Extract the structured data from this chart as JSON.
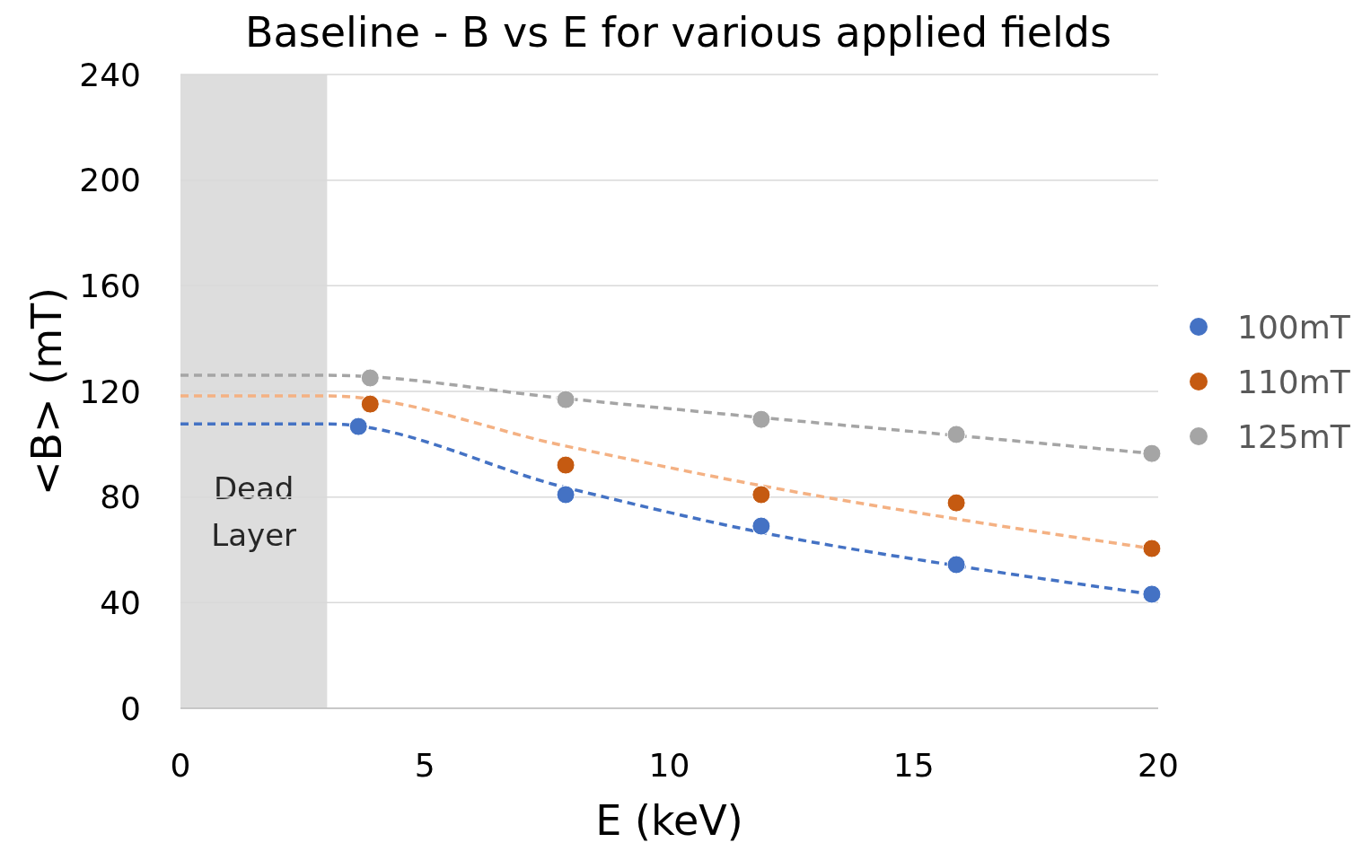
{
  "chart_data": {
    "type": "scatter",
    "title": "Baseline - B vs E for various applied fields",
    "xlabel": "E (keV)",
    "ylabel": "<B> (mT)",
    "xlim": [
      0,
      20
    ],
    "xticks": [
      0,
      5,
      10,
      15,
      20
    ],
    "ylim": [
      0,
      240
    ],
    "yticks": [
      0,
      40,
      80,
      120,
      160,
      200,
      240
    ],
    "grid": "y",
    "legend": "right",
    "bands": [
      {
        "axis": "x",
        "from": 0,
        "to": 3,
        "label": "Dead Layer",
        "color": "#dddddd"
      }
    ],
    "series": [
      {
        "type": "line",
        "color": "#4472c4",
        "line_style": "dashed",
        "marker": "none",
        "x": [
          0,
          3,
          7.88,
          11.88,
          15.87,
          19.87
        ],
        "values": [
          107.7,
          107.7,
          83.6,
          66.6,
          54.0,
          43.2
        ]
      },
      {
        "type": "line",
        "color": "#f4b183",
        "line_style": "dashed",
        "marker": "none",
        "x": [
          0,
          3,
          7.88,
          11.88,
          15.87,
          19.87
        ],
        "values": [
          118.3,
          118.3,
          99.3,
          84.3,
          71.7,
          60.5
        ]
      },
      {
        "type": "line",
        "color": "#a5a5a5",
        "line_style": "dashed",
        "marker": "none",
        "x": [
          0,
          3,
          7.88,
          11.88,
          15.87,
          19.87
        ],
        "values": [
          126.1,
          126.1,
          117.3,
          110.1,
          103.3,
          96.5
        ]
      },
      {
        "type": "scatter",
        "name": "100mT",
        "color": "#4472c4",
        "marker": "circle",
        "x": [
          3.64,
          7.88,
          11.88,
          15.87,
          19.87
        ],
        "values": [
          106.7,
          80.9,
          69.0,
          54.4,
          43.2
        ]
      },
      {
        "type": "scatter",
        "name": "110mT",
        "color": "#c55a11",
        "marker": "circle",
        "x": [
          3.88,
          7.88,
          11.88,
          15.87,
          19.87
        ],
        "values": [
          115.2,
          92.1,
          80.9,
          77.8,
          60.5
        ]
      },
      {
        "type": "scatter",
        "name": "125mT",
        "color": "#a5a5a5",
        "marker": "circle",
        "x": [
          3.88,
          7.88,
          11.88,
          15.87,
          19.87
        ],
        "values": [
          125.1,
          116.9,
          109.4,
          103.7,
          96.5
        ]
      }
    ]
  }
}
